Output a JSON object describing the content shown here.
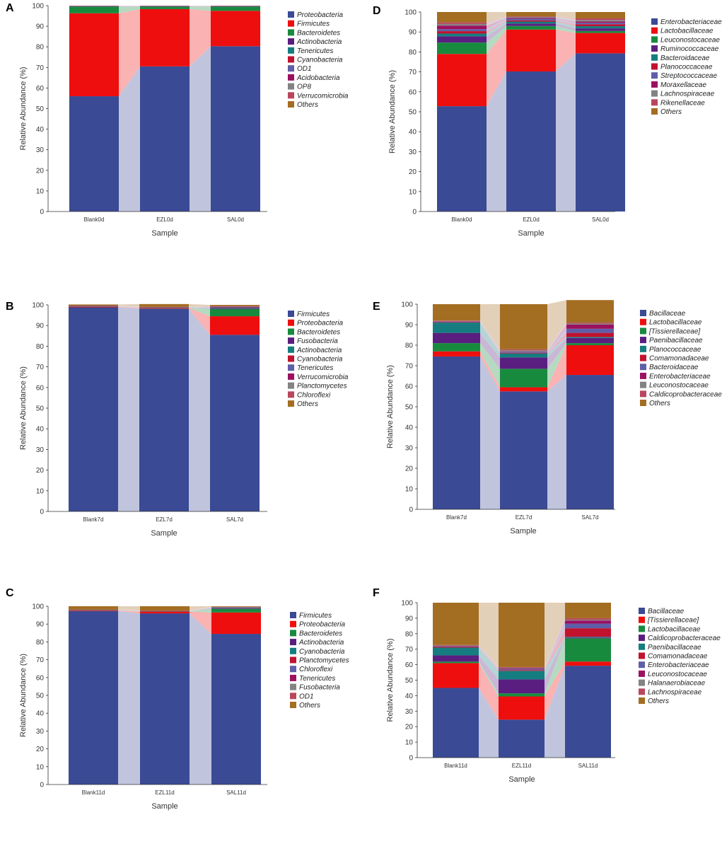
{
  "colors": {
    "navy": "#3a4a94",
    "red": "#ee0e0e",
    "green": "#188a3e",
    "purple": "#5a1e80",
    "teal": "#157d7f",
    "crimson": "#c1122e",
    "slate": "#5f5ea8",
    "magenta": "#9c1060",
    "gray": "#838383",
    "rose": "#b8475e",
    "brown": "#a36d22"
  },
  "chart_data": [
    {
      "panel": "A",
      "type": "bar",
      "stacked": true,
      "xlabel": "Sample",
      "ylabel": "Relative Abundance (%)",
      "ylim": [
        0,
        100
      ],
      "yticks": [
        0,
        10,
        20,
        30,
        40,
        50,
        60,
        70,
        80,
        90,
        100
      ],
      "categories": [
        "Blank0d",
        "EZL0d",
        "SAL0d"
      ],
      "series": [
        {
          "name": "Proteobacteria",
          "color_key": "navy",
          "values": [
            56,
            70.5,
            80.3
          ]
        },
        {
          "name": "Firmicutes",
          "color_key": "red",
          "values": [
            40.3,
            27.8,
            17.2
          ]
        },
        {
          "name": "Bacteroidetes",
          "color_key": "green",
          "values": [
            3.2,
            1.2,
            2.0
          ]
        },
        {
          "name": "Actinobacteria",
          "color_key": "purple",
          "values": [
            0.1,
            0.1,
            0.1
          ]
        },
        {
          "name": "Tenericutes",
          "color_key": "teal",
          "values": [
            0.1,
            0.1,
            0.1
          ]
        },
        {
          "name": "Cyanobacteria",
          "color_key": "crimson",
          "values": [
            0.1,
            0.1,
            0.1
          ]
        },
        {
          "name": "OD1",
          "color_key": "slate",
          "values": [
            0.05,
            0.05,
            0.05
          ]
        },
        {
          "name": "Acidobacteria",
          "color_key": "magenta",
          "values": [
            0.05,
            0.05,
            0.05
          ]
        },
        {
          "name": "OP8",
          "color_key": "gray",
          "values": [
            0.05,
            0.05,
            0.05
          ]
        },
        {
          "name": "Verrucomicrobia",
          "color_key": "rose",
          "values": [
            0.05,
            0.05,
            0.05
          ]
        },
        {
          "name": "Others",
          "color_key": "brown",
          "values": [
            0,
            0,
            0
          ]
        }
      ]
    },
    {
      "panel": "B",
      "type": "bar",
      "stacked": true,
      "xlabel": "Sample",
      "ylabel": "Relative Abundance (%)",
      "ylim": [
        0,
        100
      ],
      "yticks": [
        0,
        10,
        20,
        30,
        40,
        50,
        60,
        70,
        80,
        90,
        100
      ],
      "categories": [
        "Blank7d",
        "EZL7d",
        "SAL7d"
      ],
      "series": [
        {
          "name": "Firmicutes",
          "color_key": "navy",
          "values": [
            98.8,
            98.2,
            85.5
          ]
        },
        {
          "name": "Proteobacteria",
          "color_key": "red",
          "values": [
            0.3,
            0.3,
            9.0
          ]
        },
        {
          "name": "Bacteroidetes",
          "color_key": "green",
          "values": [
            0.1,
            0.1,
            3.5
          ]
        },
        {
          "name": "Fusobacteria",
          "color_key": "purple",
          "values": [
            0.1,
            0.1,
            0.3
          ]
        },
        {
          "name": "Actinobacteria",
          "color_key": "teal",
          "values": [
            0.1,
            0.1,
            0.3
          ]
        },
        {
          "name": "Cyanobacteria",
          "color_key": "crimson",
          "values": [
            0.05,
            0.05,
            0.2
          ]
        },
        {
          "name": "Tenericutes",
          "color_key": "slate",
          "values": [
            0.05,
            0.05,
            0.2
          ]
        },
        {
          "name": "Verrucomicrobia",
          "color_key": "magenta",
          "values": [
            0.05,
            0.05,
            0.2
          ]
        },
        {
          "name": "Planctomycetes",
          "color_key": "gray",
          "values": [
            0.05,
            0.05,
            0.1
          ]
        },
        {
          "name": "Chloroflexi",
          "color_key": "rose",
          "values": [
            0.05,
            0.05,
            0.1
          ]
        },
        {
          "name": "Others",
          "color_key": "brown",
          "values": [
            0.55,
            1.35,
            0.6
          ]
        }
      ]
    },
    {
      "panel": "C",
      "type": "bar",
      "stacked": true,
      "xlabel": "Sample",
      "ylabel": "Relative Abundance (%)",
      "ylim": [
        0,
        100
      ],
      "yticks": [
        0,
        10,
        20,
        30,
        40,
        50,
        60,
        70,
        80,
        90,
        100
      ],
      "categories": [
        "Blank11d",
        "EZL11d",
        "SAL11d"
      ],
      "series": [
        {
          "name": "Firmicutes",
          "color_key": "navy",
          "values": [
            97.3,
            96.0,
            84.5
          ]
        },
        {
          "name": "Proteobacteria",
          "color_key": "red",
          "values": [
            0.3,
            1.0,
            12.0
          ]
        },
        {
          "name": "Bacteroidetes",
          "color_key": "green",
          "values": [
            0.1,
            0.1,
            2.0
          ]
        },
        {
          "name": "Actinobacteria",
          "color_key": "purple",
          "values": [
            0.1,
            0.1,
            0.3
          ]
        },
        {
          "name": "Cyanobacteria",
          "color_key": "teal",
          "values": [
            0.05,
            0.05,
            0.3
          ]
        },
        {
          "name": "Planctomycetes",
          "color_key": "crimson",
          "values": [
            0.05,
            0.05,
            0.2
          ]
        },
        {
          "name": "Chloroflexi",
          "color_key": "slate",
          "values": [
            0.05,
            0.05,
            0.1
          ]
        },
        {
          "name": "Tenericutes",
          "color_key": "magenta",
          "values": [
            0.05,
            0.05,
            0.1
          ]
        },
        {
          "name": "Fusobacteria",
          "color_key": "gray",
          "values": [
            0.05,
            0.05,
            0.1
          ]
        },
        {
          "name": "OD1",
          "color_key": "rose",
          "values": [
            0.05,
            0.05,
            0.1
          ]
        },
        {
          "name": "Others",
          "color_key": "brown",
          "values": [
            1.9,
            2.5,
            0.3
          ]
        }
      ]
    },
    {
      "panel": "D",
      "type": "bar",
      "stacked": true,
      "xlabel": "Sample",
      "ylabel": "Relative Abundance (%)",
      "ylim": [
        0,
        100
      ],
      "yticks": [
        0,
        10,
        20,
        30,
        40,
        50,
        60,
        70,
        80,
        90,
        100
      ],
      "categories": [
        "Blank0d",
        "EZL0d",
        "SAL0d"
      ],
      "series": [
        {
          "name": "Enterobacteriaceae",
          "color_key": "navy",
          "values": [
            52.8,
            70.2,
            79.3
          ]
        },
        {
          "name": "Lactobacillaceae",
          "color_key": "red",
          "values": [
            26.2,
            21.0,
            10.2
          ]
        },
        {
          "name": "Leuconostocaceae",
          "color_key": "green",
          "values": [
            5.7,
            1.8,
            1.0
          ]
        },
        {
          "name": "Ruminococcaceae",
          "color_key": "purple",
          "values": [
            3.1,
            1.2,
            1.3
          ]
        },
        {
          "name": "Bacteroidaceae",
          "color_key": "teal",
          "values": [
            1.4,
            1.0,
            1.1
          ]
        },
        {
          "name": "Planococcaceae",
          "color_key": "crimson",
          "values": [
            1.2,
            0.6,
            1.0
          ]
        },
        {
          "name": "Streptococcaceae",
          "color_key": "slate",
          "values": [
            1.0,
            0.8,
            0.7
          ]
        },
        {
          "name": "Moraxellaceae",
          "color_key": "magenta",
          "values": [
            1.8,
            0.4,
            0.6
          ]
        },
        {
          "name": "Lachnospiraceae",
          "color_key": "gray",
          "values": [
            0.8,
            0.5,
            0.8
          ]
        },
        {
          "name": "Rikenellaceae",
          "color_key": "rose",
          "values": [
            0.8,
            0.3,
            0.8
          ]
        },
        {
          "name": "Others",
          "color_key": "brown",
          "values": [
            5.2,
            2.2,
            3.2
          ]
        }
      ]
    },
    {
      "panel": "E",
      "type": "bar",
      "stacked": true,
      "xlabel": "Sample",
      "ylabel": "Relative Abundance (%)",
      "ylim": [
        0,
        100
      ],
      "yticks": [
        0,
        10,
        20,
        30,
        40,
        50,
        60,
        70,
        80,
        90,
        100
      ],
      "categories": [
        "Blank7d",
        "EZL7d",
        "SAL7d"
      ],
      "series": [
        {
          "name": "Bacillaceae",
          "color_key": "navy",
          "values": [
            74.5,
            57.5,
            65.5
          ]
        },
        {
          "name": "Lactobacillaceae",
          "color_key": "red",
          "values": [
            2.5,
            2.0,
            14.5
          ]
        },
        {
          "name": "[Tissierellaceae]",
          "color_key": "green",
          "values": [
            4.0,
            9.0,
            1.0
          ]
        },
        {
          "name": "Paenibacillaceae",
          "color_key": "purple",
          "values": [
            5.0,
            5.5,
            2.5
          ]
        },
        {
          "name": "Planococcaceae",
          "color_key": "teal",
          "values": [
            5.0,
            2.0,
            0.5
          ]
        },
        {
          "name": "Comamonadaceae",
          "color_key": "crimson",
          "values": [
            0.2,
            0.3,
            2.0
          ]
        },
        {
          "name": "Bacteroidaceae",
          "color_key": "slate",
          "values": [
            0.2,
            0.5,
            2.0
          ]
        },
        {
          "name": "Enterobacteriaceae",
          "color_key": "magenta",
          "values": [
            0.2,
            0.2,
            2.0
          ]
        },
        {
          "name": "Leuconostocaceae",
          "color_key": "gray",
          "values": [
            0.2,
            0.5,
            0.5
          ]
        },
        {
          "name": "Caldicoprobacteraceae",
          "color_key": "rose",
          "values": [
            0.2,
            0.5,
            0.5
          ]
        },
        {
          "name": "Others",
          "color_key": "brown",
          "values": [
            8.0,
            22.0,
            11.0
          ]
        }
      ]
    },
    {
      "panel": "F",
      "type": "bar",
      "stacked": true,
      "xlabel": "Sample",
      "ylabel": "Relative Abundance (%)",
      "ylim": [
        0,
        100
      ],
      "yticks": [
        0,
        10,
        20,
        30,
        40,
        50,
        60,
        70,
        80,
        90,
        100
      ],
      "categories": [
        "Blank11d",
        "EZL11d",
        "SAL11d"
      ],
      "series": [
        {
          "name": "Bacillaceae",
          "color_key": "navy",
          "values": [
            45.0,
            24.5,
            59.3
          ]
        },
        {
          "name": "[Tissierellaceae]",
          "color_key": "red",
          "values": [
            16.0,
            15.0,
            2.7
          ]
        },
        {
          "name": "Lactobacillaceae",
          "color_key": "green",
          "values": [
            1.0,
            2.0,
            15.0
          ]
        },
        {
          "name": "Caldicoprobacteraceae",
          "color_key": "purple",
          "values": [
            4.0,
            9.0,
            0.5
          ]
        },
        {
          "name": "Paenibacillaceae",
          "color_key": "teal",
          "values": [
            5.0,
            5.5,
            0.5
          ]
        },
        {
          "name": "Comamonadaceae",
          "color_key": "crimson",
          "values": [
            0.5,
            0.5,
            5.5
          ]
        },
        {
          "name": "Enterobacteriaceae",
          "color_key": "slate",
          "values": [
            0.3,
            0.5,
            3.0
          ]
        },
        {
          "name": "Leuconostocaceae",
          "color_key": "magenta",
          "values": [
            0.3,
            0.5,
            2.0
          ]
        },
        {
          "name": "Halanaerobiaceae",
          "color_key": "gray",
          "values": [
            0.3,
            0.5,
            0.5
          ]
        },
        {
          "name": "Lachnospiraceae",
          "color_key": "rose",
          "values": [
            0.3,
            0.5,
            1.0
          ]
        },
        {
          "name": "Others",
          "color_key": "brown",
          "values": [
            27.3,
            41.5,
            10.0
          ]
        }
      ]
    }
  ]
}
